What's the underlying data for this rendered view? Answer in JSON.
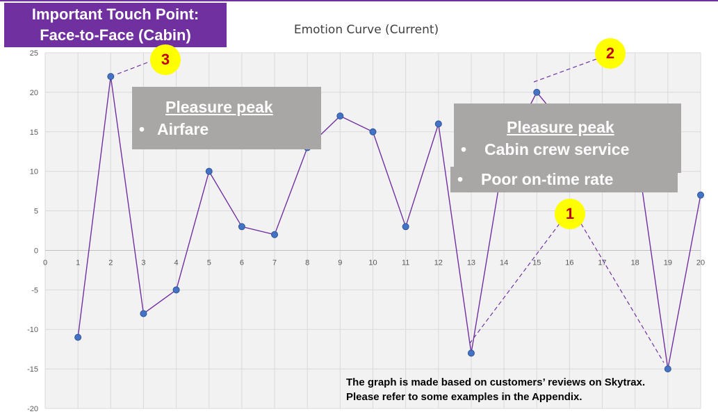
{
  "touch_point": {
    "line1": "Important Touch Point:",
    "line2": "Face-to-Face (Cabin)"
  },
  "chart_data": {
    "type": "line",
    "title": "Emotion Curve (Current)",
    "x": [
      1,
      2,
      3,
      4,
      5,
      6,
      7,
      8,
      9,
      10,
      11,
      12,
      13,
      14,
      15,
      16,
      17,
      18,
      19,
      20
    ],
    "series": [
      {
        "values": [
          -11,
          22,
          -8,
          -5,
          10,
          3,
          2,
          13,
          17,
          15,
          3,
          16,
          -13,
          12,
          20,
          15,
          16,
          14,
          -15,
          7
        ]
      }
    ],
    "xlim": [
      0,
      20
    ],
    "ylim": [
      -20,
      25
    ],
    "x_ticks": [
      "0",
      "1",
      "2",
      "3",
      "4",
      "5",
      "6",
      "7",
      "8",
      "9",
      "10",
      "11",
      "12",
      "13",
      "14",
      "15",
      "16",
      "17",
      "18",
      "19",
      "20"
    ],
    "y_ticks": [
      "25",
      "20",
      "15",
      "10",
      "5",
      "0",
      "-5",
      "-10",
      "-15",
      "-20"
    ],
    "grid": true,
    "line_color": "#7030a0",
    "marker_color": "#4472c4"
  },
  "peak_left": {
    "title": "Pleasure peak",
    "bullets": [
      "Airfare"
    ]
  },
  "peak_right": {
    "title": "Pleasure peak",
    "bullets": [
      "Cabin crew service",
      "Poor on-time rate"
    ]
  },
  "markers": {
    "m1": "1",
    "m2": "2",
    "m3": "3"
  },
  "footnote": {
    "line1": "The graph is made based on customers’ reviews on Skytrax.",
    "line2": "Please refer to some examples in the Appendix."
  },
  "colors": {
    "accent": "#7030a0",
    "callout_fill": "#a9a6a6",
    "marker_fill": "#ffff00",
    "marker_text": "#c00000",
    "plot_bg": "#f2f2f2"
  }
}
